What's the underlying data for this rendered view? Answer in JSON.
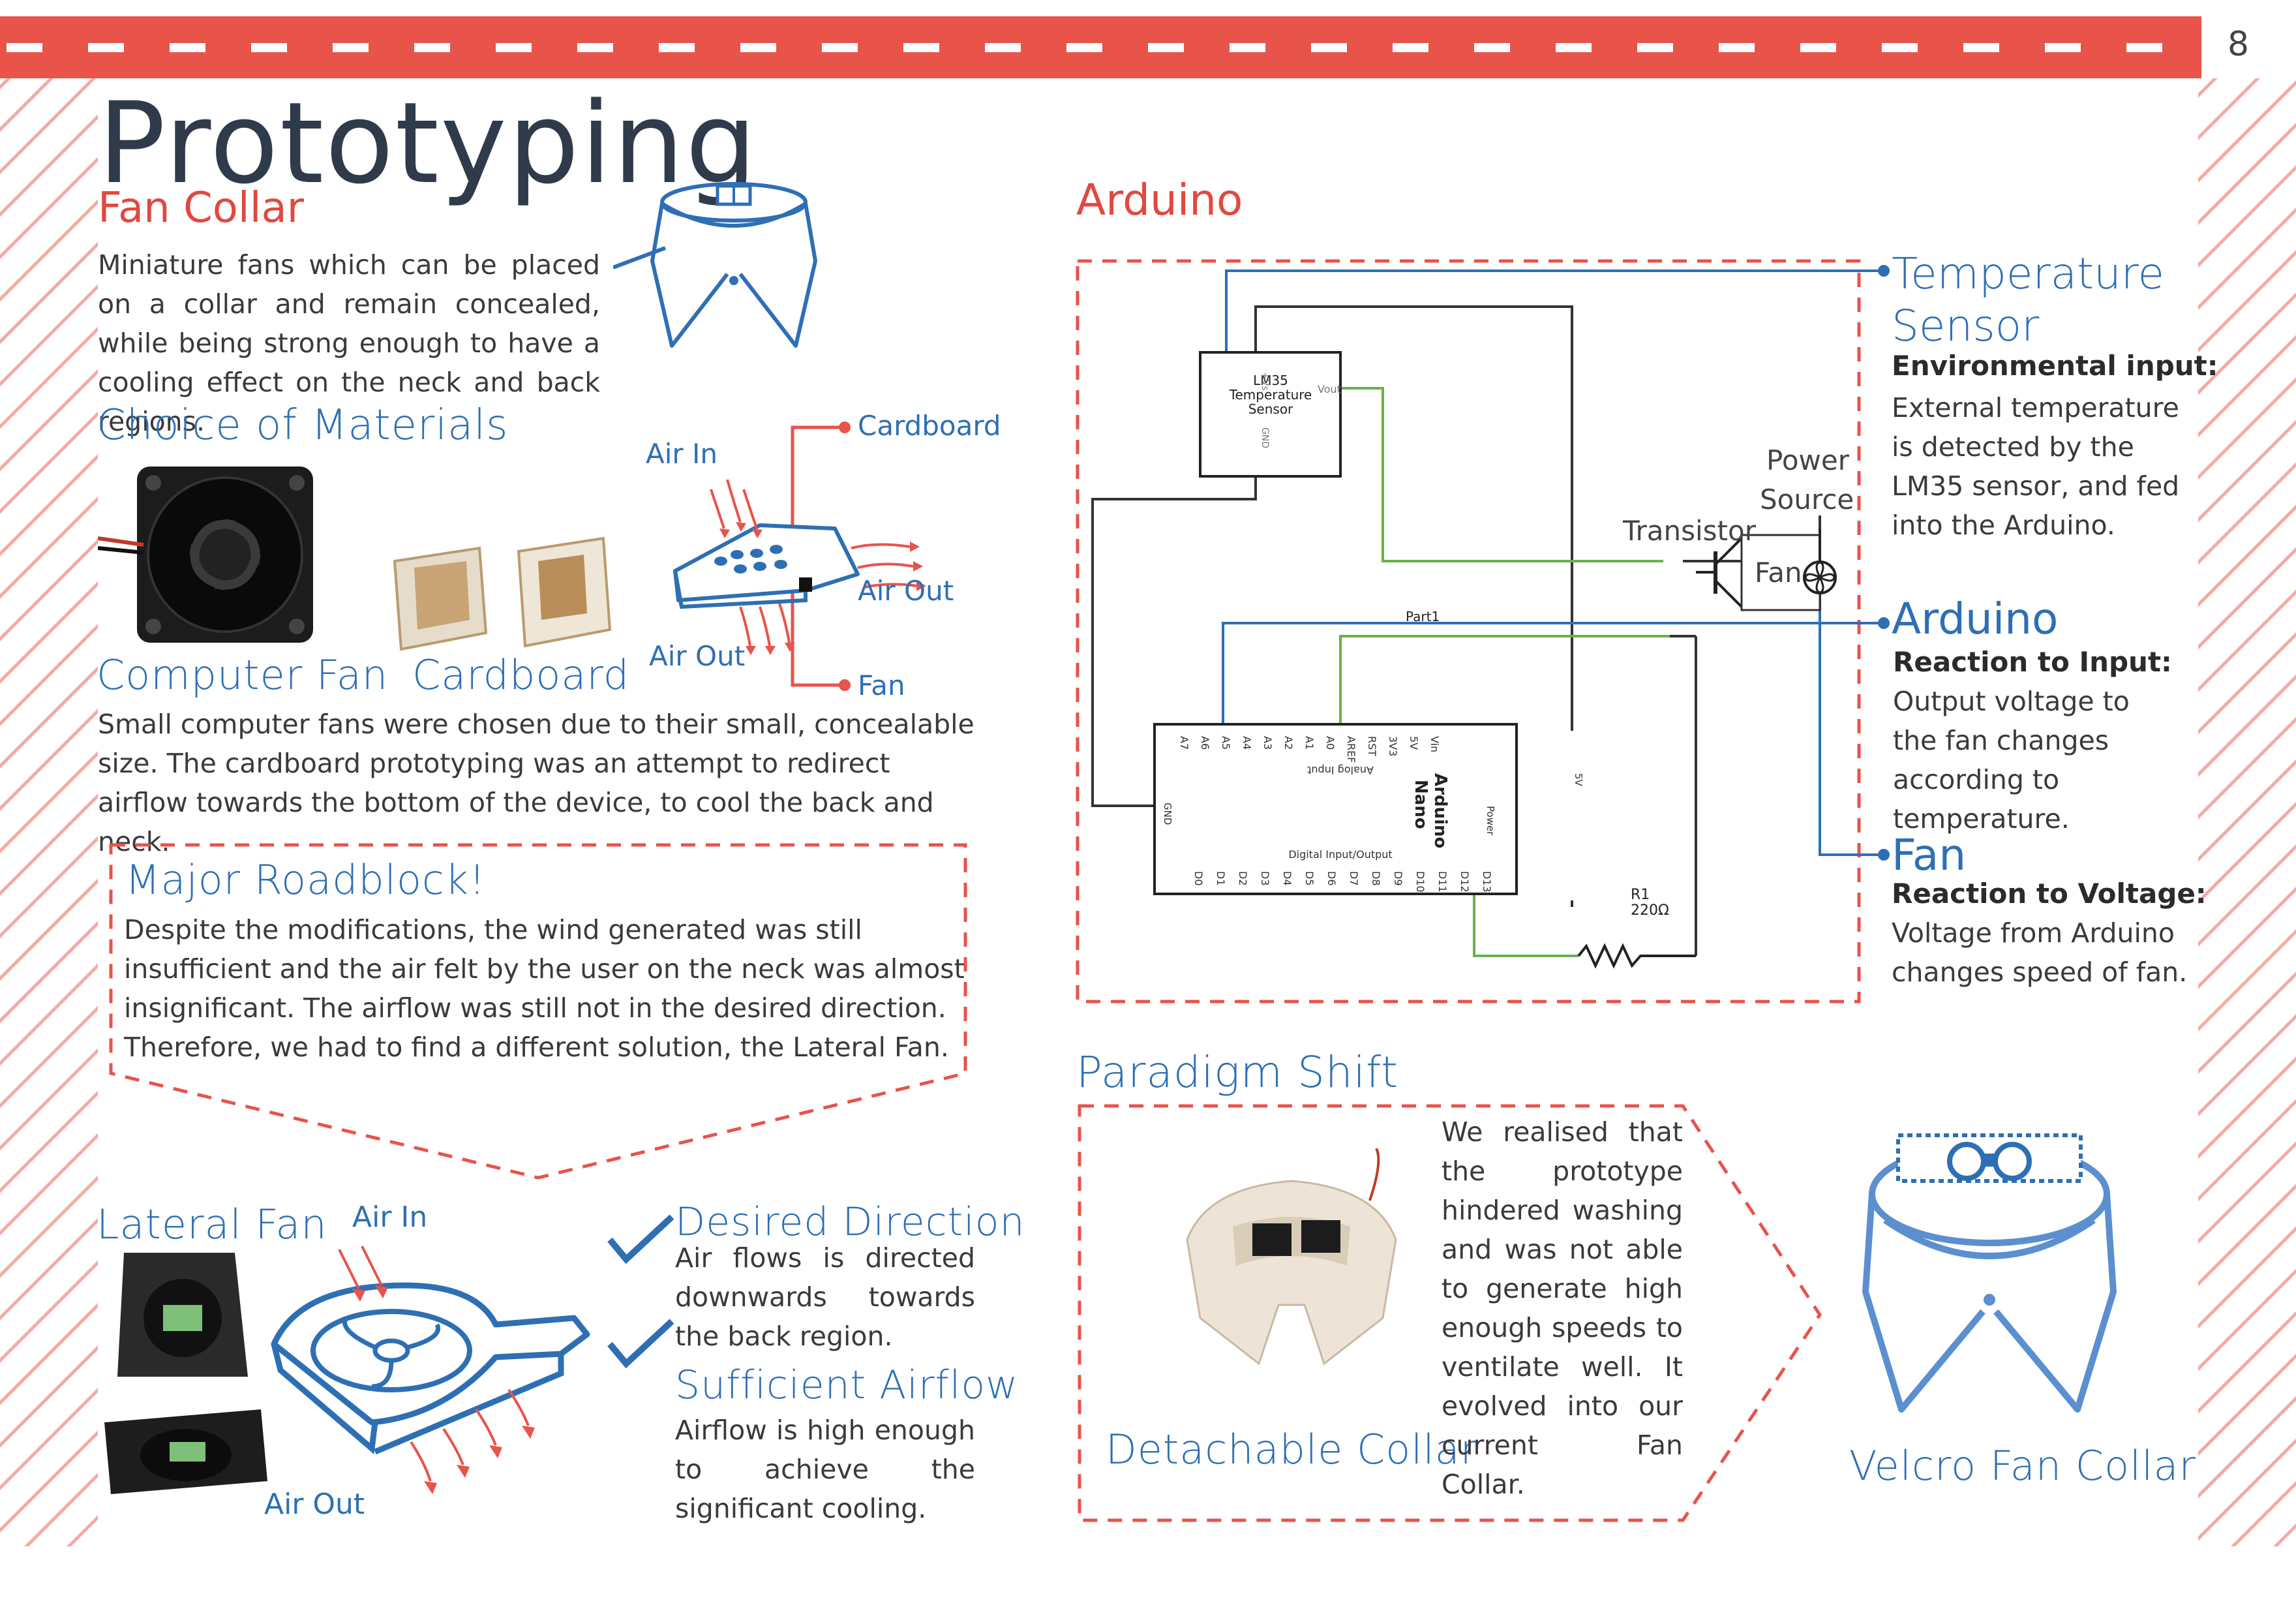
{
  "page_number": "8",
  "title": "Prototyping",
  "fan_collar": {
    "heading": "Fan Collar",
    "body": "Miniature fans which can be placed on a collar and remain concealed, while being strong enough to have a cooling effect on the neck and back regions."
  },
  "materials": {
    "heading": "Choice of Materials",
    "computer_fan_label": "Computer Fan",
    "cardboard_label": "Cardboard",
    "diagram": {
      "air_in": "Air In",
      "air_out_right": "Air Out",
      "air_out_bottom": "Air Out",
      "cardboard": "Cardboard",
      "fan": "Fan"
    },
    "body": "Small computer fans were chosen due to their small, concealable size. The cardboard prototyping was an attempt to redirect airflow towards the bottom of the device, to cool the back and neck."
  },
  "roadblock": {
    "heading": "Major Roadblock!",
    "body": "Despite the modifications, the wind generated was still insufficient and the air felt by the user on the neck was almost insignificant. The airflow was still not in the desired direction. Therefore, we had to find a different solution, the Lateral Fan."
  },
  "lateral_fan": {
    "heading": "Lateral Fan",
    "air_in": "Air In",
    "air_out": "Air Out",
    "points": [
      {
        "title": "Desired Direction",
        "body": "Air flows is directed downwards towards the back region."
      },
      {
        "title": "Sufficient Airflow",
        "body": "Airflow is high enough to achieve the significant cooling."
      }
    ]
  },
  "arduino": {
    "heading": "Arduino",
    "circuit": {
      "lm35_lines": [
        "LM35",
        "Temperature",
        "Sensor"
      ],
      "vout": "Vout",
      "gnd": "GND",
      "vs": "+Vs",
      "part1": "Part1",
      "transistor": "Transistor",
      "power_source": [
        "Power",
        "Source"
      ],
      "fan": "Fan",
      "nano_lines": [
        "Arduino",
        "Nano"
      ],
      "analog_input": "Analog Input",
      "digital_io": "Digital Input/Output",
      "power": "Power",
      "r1": "R1",
      "r1_value": "220Ω",
      "top_pins": [
        "A7",
        "A6",
        "A5",
        "A4",
        "A3",
        "A2",
        "A1",
        "A0",
        "AREF",
        "RST",
        "3V3",
        "5V",
        "Vin"
      ],
      "bottom_pins": [
        "D0",
        "D1",
        "D2",
        "D3",
        "D4",
        "D5",
        "D6",
        "D7",
        "D8",
        "D9",
        "D10",
        "D11",
        "D12",
        "D13"
      ],
      "gnd_pin": "GND",
      "five_v": "5V"
    },
    "legend": [
      {
        "title": "Temperature Sensor",
        "subtitle": "Environmental input:",
        "body": "External temperature is detected by the LM35 sensor, and fed into the Arduino."
      },
      {
        "title": "Arduino",
        "subtitle": "Reaction to Input:",
        "body": "Output voltage to the fan changes according to temperature."
      },
      {
        "title": "Fan",
        "subtitle": "Reaction to Voltage:",
        "body": "Voltage from Arduino changes speed of fan."
      }
    ]
  },
  "paradigm": {
    "heading": "Paradigm Shift",
    "detachable_label": "Detachable Collar",
    "body": "We realised that the prototype hindered washing and was not able to generate high enough speeds to ventilate well. It evolved into our current Fan Collar.",
    "velcro_label": "Velcro Fan Collar"
  },
  "colors": {
    "red": "#e8534a",
    "blue": "#2e6fb4",
    "stripe": "#f2a6a1"
  }
}
